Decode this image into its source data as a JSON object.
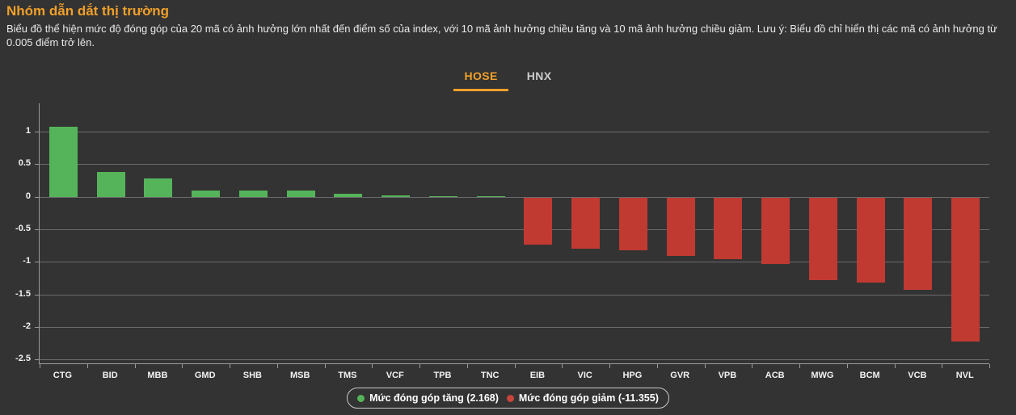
{
  "page": {
    "title": "Nhóm dẫn dắt thị trường",
    "subtitle": "Biểu đồ thể hiện mức độ đóng góp của 20 mã có ảnh hưởng lớn nhất đến điểm số của index, với 10 mã ảnh hưởng chiều tăng và 10 mã ảnh hưởng chiều giảm. Lưu ý: Biểu đồ chỉ hiển thị các mã có ảnh hưởng từ 0.005 điểm trở lên."
  },
  "tabs": [
    {
      "label": "HOSE",
      "active": true
    },
    {
      "label": "HNX",
      "active": false
    }
  ],
  "legend": [
    {
      "label": "Mức đóng góp tăng (2.168)",
      "color": "#55b45a"
    },
    {
      "label": "Mức đóng góp giảm (-11.355)",
      "color": "#c8443a"
    }
  ],
  "colors": {
    "background": "#333333",
    "accent_orange": "#f0a02a",
    "positive": "#55b45a",
    "negative": "#c03a31",
    "gridline": "#6e6e6e",
    "axis": "#9a9a9a",
    "text": "#f2f2f2"
  },
  "chart_data": {
    "type": "bar",
    "title": "Nhóm dẫn dắt thị trường",
    "categories": [
      "CTG",
      "BID",
      "MBB",
      "GMD",
      "SHB",
      "MSB",
      "TMS",
      "VCF",
      "TPB",
      "TNC",
      "EIB",
      "VIC",
      "HPG",
      "GVR",
      "VPB",
      "ACB",
      "MWG",
      "BCM",
      "VCB",
      "NVL"
    ],
    "values": [
      1.08,
      0.38,
      0.28,
      0.09,
      0.09,
      0.09,
      0.04,
      0.02,
      0.01,
      0.008,
      -0.73,
      -0.78,
      -0.81,
      -0.9,
      -0.95,
      -1.02,
      -1.27,
      -1.31,
      -1.42,
      -2.21
    ],
    "positive_total": 2.168,
    "negative_total": -11.355,
    "xlabel": "",
    "ylabel": "",
    "y_ticks": [
      1,
      0.5,
      0,
      -0.5,
      -1,
      -1.5,
      -2,
      -2.5
    ],
    "ylim": [
      -2.56,
      1.435
    ],
    "grid": true,
    "legend_position": "bottom"
  }
}
